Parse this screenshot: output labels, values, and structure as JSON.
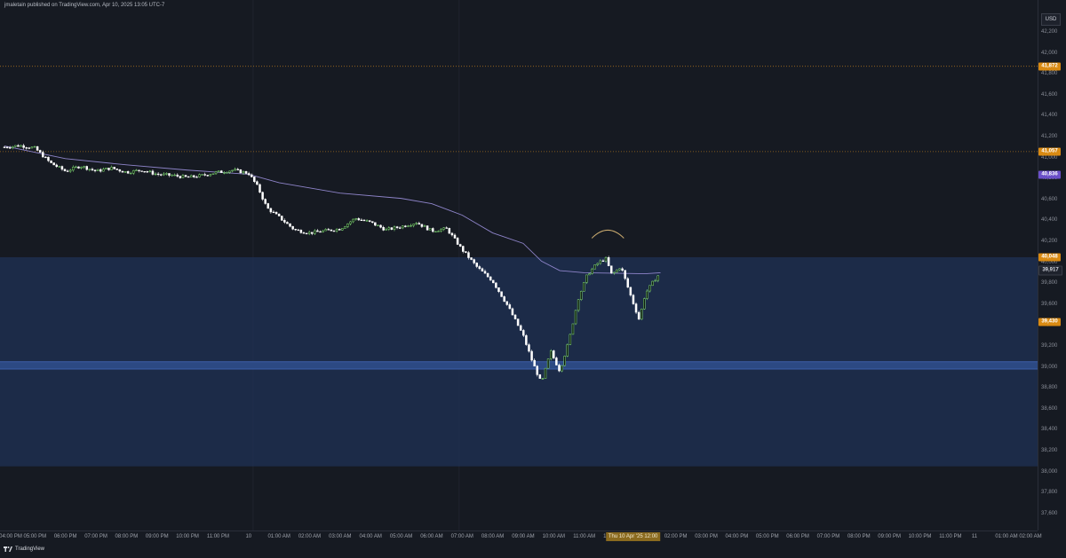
{
  "header": {
    "text": "jmaletain published on TradingView.com, Apr 10, 2025 13:05 UTC-7"
  },
  "footer": {
    "brand": "TradingView",
    "logo_icon": "tradingview-logo-icon"
  },
  "currency": "USD",
  "colors": {
    "background": "#161a22",
    "zone": "#1f3156",
    "zone_line": "#3c5ea8",
    "up_candle": "#86e07a",
    "down_candle": "#ffffff",
    "ma_line": "#8e84c9",
    "level_line": "#c8821e",
    "arc": "#c8a96e"
  },
  "price_flags": [
    {
      "label": "41,872",
      "price": 41872,
      "color": "#d98a12"
    },
    {
      "label": "41,057",
      "price": 41057,
      "color": "#d98a12"
    },
    {
      "label": "40,836",
      "price": 40836,
      "color": "#6a4fc8"
    },
    {
      "label": "40,048",
      "price": 40048,
      "color": "#d98a12"
    },
    {
      "label": "39,917",
      "price": 39917,
      "color": "#1e222c"
    },
    {
      "label": "39,430",
      "price": 39430,
      "color": "#d98a12"
    }
  ],
  "x_cursor_label": "Thu 10 Apr '25 12:00",
  "chart_data": {
    "type": "candlestick",
    "title": "",
    "ylim": [
      37400,
      42400
    ],
    "y_ticks": [
      "42,200",
      "42,000",
      "41,800",
      "41,600",
      "41,400",
      "41,200",
      "41,000",
      "40,800",
      "40,600",
      "40,400",
      "40,200",
      "40,000",
      "39,800",
      "39,600",
      "39,400",
      "39,200",
      "39,000",
      "38,800",
      "38,600",
      "38,400",
      "38,200",
      "38,000",
      "37,800",
      "37,600"
    ],
    "x_ticks": [
      "04:00 PM",
      "05:00 PM",
      "06:00 PM",
      "07:00 PM",
      "08:00 PM",
      "09:00 PM",
      "10:00 PM",
      "11:00 PM",
      "10",
      "01:00 AM",
      "02:00 AM",
      "03:00 AM",
      "04:00 AM",
      "05:00 AM",
      "06:00 AM",
      "07:00 AM",
      "08:00 AM",
      "09:00 AM",
      "10:00 AM",
      "11:00 AM",
      "12:00 PM",
      "01:00 PM",
      "02:00 PM",
      "03:00 PM",
      "04:00 PM",
      "05:00 PM",
      "06:00 PM",
      "07:00 PM",
      "08:00 PM",
      "09:00 PM",
      "10:00 PM",
      "11:00 PM",
      "11",
      "01:00 AM",
      "02:00 AM"
    ],
    "horizontal_levels": [
      41872,
      41057
    ],
    "demand_zone": {
      "top": 40048,
      "bottom": 38050
    },
    "zone_band": {
      "top": 39050,
      "bottom": 38980
    },
    "price_path": [
      [
        0,
        41100
      ],
      [
        0.5,
        41115
      ],
      [
        1,
        41090
      ],
      [
        1.5,
        40950
      ],
      [
        2,
        40870
      ],
      [
        2.5,
        40920
      ],
      [
        3,
        40870
      ],
      [
        3.5,
        40900
      ],
      [
        4,
        40860
      ],
      [
        4.5,
        40880
      ],
      [
        5,
        40840
      ],
      [
        5.5,
        40830
      ],
      [
        6,
        40810
      ],
      [
        6.5,
        40830
      ],
      [
        7,
        40860
      ],
      [
        7.5,
        40880
      ],
      [
        8,
        40850
      ],
      [
        8.3,
        40720
      ],
      [
        8.6,
        40520
      ],
      [
        9,
        40430
      ],
      [
        9.5,
        40310
      ],
      [
        10,
        40280
      ],
      [
        10.5,
        40300
      ],
      [
        11,
        40320
      ],
      [
        11.5,
        40420
      ],
      [
        12,
        40380
      ],
      [
        12.5,
        40310
      ],
      [
        13,
        40340
      ],
      [
        13.5,
        40380
      ],
      [
        14,
        40300
      ],
      [
        14.5,
        40320
      ],
      [
        15,
        40120
      ],
      [
        15.5,
        39950
      ],
      [
        16,
        39820
      ],
      [
        16.5,
        39580
      ],
      [
        17,
        39300
      ],
      [
        17.3,
        39050
      ],
      [
        17.6,
        38840
      ],
      [
        17.9,
        39150
      ],
      [
        18.2,
        38960
      ],
      [
        18.5,
        39250
      ],
      [
        18.8,
        39650
      ],
      [
        19.1,
        39880
      ],
      [
        19.4,
        39980
      ],
      [
        19.7,
        40040
      ],
      [
        19.9,
        39880
      ],
      [
        20.2,
        39960
      ],
      [
        20.5,
        39700
      ],
      [
        20.8,
        39450
      ],
      [
        21.0,
        39700
      ],
      [
        21.3,
        39830
      ],
      [
        21.5,
        39900
      ]
    ],
    "moving_average": [
      [
        0,
        41110
      ],
      [
        2,
        40990
      ],
      [
        4,
        40930
      ],
      [
        6,
        40880
      ],
      [
        8,
        40840
      ],
      [
        9,
        40760
      ],
      [
        11,
        40660
      ],
      [
        13,
        40610
      ],
      [
        14,
        40560
      ],
      [
        15,
        40450
      ],
      [
        16,
        40280
      ],
      [
        17,
        40180
      ],
      [
        17.6,
        40010
      ],
      [
        18.2,
        39920
      ],
      [
        19,
        39900
      ],
      [
        21,
        39890
      ],
      [
        21.5,
        39900
      ]
    ]
  }
}
